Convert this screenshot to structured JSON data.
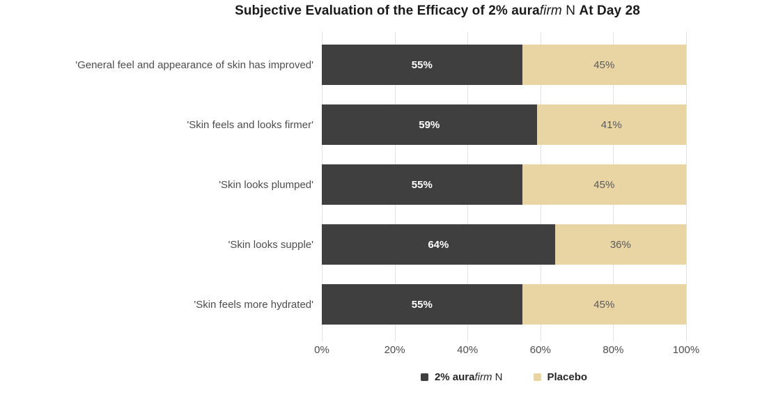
{
  "title": {
    "bold_start": "Subjective Evaluation of the Efficacy of 2% aura",
    "italic": "firm",
    "regular": " N ",
    "bold_end": "At Day 28"
  },
  "colors": {
    "treatment": "#3f3f3f",
    "placebo": "#e9d5a4",
    "gridline": "#e0e0e0",
    "axis_text": "#4d4d4d",
    "category_text": "#4d4d4d",
    "value_on_treatment": "#ffffff",
    "value_on_placebo": "#5a5a5a",
    "title_text": "#1a1a1a",
    "legend_text": "#262626",
    "background": "#ffffff"
  },
  "legend": {
    "items": [
      {
        "swatch_name": "treatment-swatch",
        "bold": "2% aura",
        "italic": "firm",
        "regular": " N",
        "color": "#3f3f3f"
      },
      {
        "swatch_name": "placebo-swatch",
        "bold": "Placebo",
        "italic": "",
        "regular": "",
        "color": "#e9d5a4"
      }
    ]
  },
  "chart_data": {
    "type": "bar",
    "orientation": "horizontal",
    "stacked": true,
    "title": "Subjective Evaluation of the Efficacy of 2% aurafirm N At Day 28",
    "categories": [
      "'General feel and appearance of skin has improved'",
      "'Skin feels and looks firmer'",
      "'Skin looks plumped'",
      "'Skin looks supple'",
      "'Skin feels more hydrated'"
    ],
    "series": [
      {
        "name": "2% aurafirm N",
        "values": [
          55,
          59,
          55,
          64,
          55
        ],
        "color": "#3f3f3f"
      },
      {
        "name": "Placebo",
        "values": [
          45,
          41,
          45,
          36,
          45
        ],
        "color": "#e9d5a4"
      }
    ],
    "value_labels": [
      [
        "55%",
        "45%"
      ],
      [
        "59%",
        "41%"
      ],
      [
        "55%",
        "45%"
      ],
      [
        "64%",
        "36%"
      ],
      [
        "55%",
        "45%"
      ]
    ],
    "x_ticks": [
      "0%",
      "20%",
      "40%",
      "60%",
      "80%",
      "100%"
    ],
    "xlabel": "",
    "ylabel": "",
    "xlim": [
      0,
      100
    ],
    "grid": true,
    "legend_position": "bottom"
  }
}
